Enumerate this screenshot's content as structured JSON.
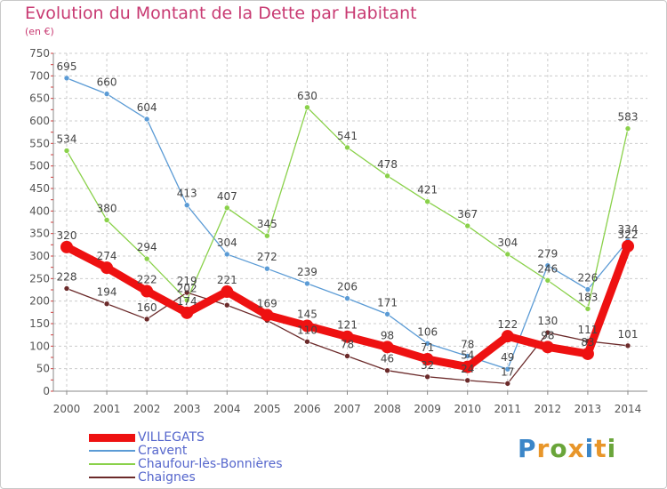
{
  "page": {
    "title": "Evolution du Montant de la Dette par Habitant",
    "subtitle": "(en €)"
  },
  "brand": {
    "letters": [
      "P",
      "r",
      "o",
      "x",
      "i",
      "t",
      "i"
    ],
    "colors": [
      "#3b86c8",
      "#e8962a",
      "#6aa53a",
      "#e8962a",
      "#3b86c8",
      "#e8962a",
      "#6aa53a"
    ]
  },
  "chart_data": {
    "type": "line",
    "title": "Evolution du Montant de la Dette par Habitant",
    "ylabel": "(en €)",
    "xlabel": "",
    "categories": [
      "2000",
      "2001",
      "2002",
      "2003",
      "2004",
      "2005",
      "2006",
      "2007",
      "2008",
      "2009",
      "2010",
      "2011",
      "2012",
      "2013",
      "2014"
    ],
    "ylim": [
      0,
      750
    ],
    "yticks": [
      0,
      50,
      100,
      150,
      200,
      250,
      300,
      350,
      400,
      450,
      500,
      550,
      600,
      650,
      700,
      750
    ],
    "grid": true,
    "legend_position": "bottom-left",
    "series": [
      {
        "name": "VILLEGATS",
        "color": "#ee1111",
        "values": [
          320,
          274,
          222,
          174,
          221,
          169,
          145,
          121,
          98,
          71,
          54,
          122,
          98,
          83,
          322
        ],
        "labels": [
          "320",
          "274",
          "222",
          "174",
          "221",
          "169",
          "145",
          "121",
          "98",
          "71",
          "54",
          "122",
          "98",
          "83",
          "322"
        ],
        "emphasis": true
      },
      {
        "name": "Cravent",
        "color": "#5b9bd5",
        "values": [
          695,
          660,
          604,
          413,
          304,
          272,
          239,
          206,
          171,
          106,
          78,
          49,
          279,
          226,
          334
        ],
        "labels": [
          "695",
          "660",
          "604",
          "413",
          "304",
          "272",
          "239",
          "206",
          "171",
          "106",
          "78",
          "49",
          "279",
          "226",
          "334"
        ]
      },
      {
        "name": "Chaufour-lès-Bonnières",
        "color": "#8ad14a",
        "values": [
          534,
          380,
          294,
          202,
          407,
          345,
          630,
          541,
          478,
          421,
          367,
          304,
          246,
          183,
          583
        ],
        "labels": [
          "534",
          "380",
          "294",
          "202",
          "407",
          "345",
          "630",
          "541",
          "478",
          "421",
          "367",
          "304",
          "246",
          "183",
          "583"
        ]
      },
      {
        "name": "Chaignes",
        "color": "#6b2a2a",
        "values": [
          228,
          194,
          160,
          219,
          191,
          157,
          110,
          78,
          46,
          32,
          24,
          17,
          130,
          111,
          101
        ],
        "labels": [
          "228",
          "194",
          "160",
          "219",
          "",
          "",
          "110",
          "78",
          "46",
          "32",
          "24",
          "17",
          "130",
          "111",
          "101"
        ]
      }
    ]
  }
}
